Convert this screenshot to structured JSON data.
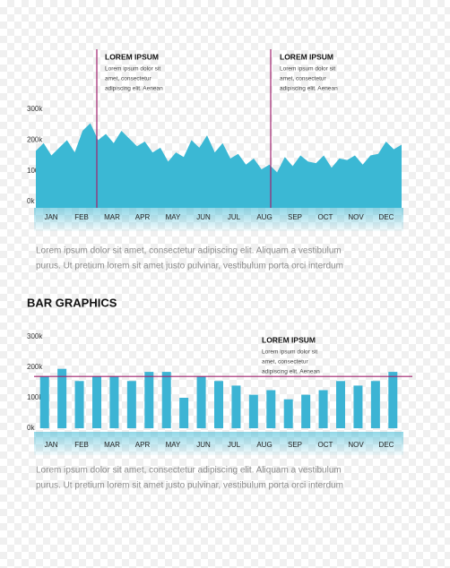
{
  "chart_data": [
    {
      "type": "area",
      "color": "#3bb8d4",
      "line_color": "#a0236e",
      "x_labels": [
        "JAN",
        "FEB",
        "MAR",
        "APR",
        "MAY",
        "JUN",
        "JUL",
        "AUG",
        "SEP",
        "OCT",
        "NOV",
        "DEC"
      ],
      "values": [
        165,
        190,
        150,
        175,
        200,
        160,
        230,
        255,
        200,
        220,
        190,
        230,
        205,
        180,
        195,
        160,
        175,
        130,
        160,
        145,
        200,
        175,
        215,
        160,
        190,
        140,
        155,
        120,
        140,
        105,
        120,
        95,
        145,
        115,
        150,
        130,
        125,
        150,
        110,
        140,
        135,
        150,
        120,
        150,
        155,
        195,
        170,
        185
      ],
      "ylim": [
        0,
        300
      ],
      "yticks": [
        {
          "value": 0,
          "label": "0k"
        },
        {
          "value": 100,
          "label": "100k"
        },
        {
          "value": 200,
          "label": "200k"
        },
        {
          "value": 300,
          "label": "300k"
        }
      ],
      "annotations": [
        {
          "title": "LOREM IPSUM",
          "lines": [
            "Lorem ipsum dolor sit",
            "amet, consectetur",
            "adipiscing elit. Aenean"
          ]
        },
        {
          "title": "LOREM IPSUM",
          "lines": [
            "Lorem ipsum dolor sit",
            "amet, consectetur",
            "adipiscing elit. Aenean"
          ]
        }
      ],
      "caption": [
        "Lorem ipsum dolor sit amet, consectetur adipiscing elit. Aliquam a vestibulum",
        "purus. Ut pretium lorem sit amet justo pulvinar, vestibulum porta orci interdum"
      ]
    },
    {
      "type": "bar",
      "title": "BAR GRAPHICS",
      "color": "#3cb4d4",
      "line_color": "#a0236e",
      "x_labels": [
        "JAN",
        "FEB",
        "MAR",
        "APR",
        "MAY",
        "JUN",
        "JUL",
        "AUG",
        "SEP",
        "OCT",
        "NOV",
        "DEC"
      ],
      "values": [
        170,
        195,
        155,
        170,
        170,
        155,
        185,
        185,
        100,
        170,
        155,
        140,
        110,
        125,
        95,
        110,
        125,
        155,
        140,
        155,
        185
      ],
      "reference_line": 170,
      "ylim": [
        0,
        300
      ],
      "yticks": [
        {
          "value": 0,
          "label": "0k"
        },
        {
          "value": 100,
          "label": "100k"
        },
        {
          "value": 200,
          "label": "200k"
        },
        {
          "value": 300,
          "label": "300k"
        }
      ],
      "annotations": [
        {
          "title": "LOREM IPSUM",
          "lines": [
            "Lorem ipsum dolor sit",
            "amet, consectetur",
            "adipiscing elit. Aenean"
          ]
        }
      ],
      "caption": [
        "Lorem ipsum dolor sit amet, consectetur adipiscing elit. Aliquam a vestibulum",
        "purus. Ut pretium lorem sit amet justo pulvinar, vestibulum porta orci interdum"
      ]
    }
  ]
}
